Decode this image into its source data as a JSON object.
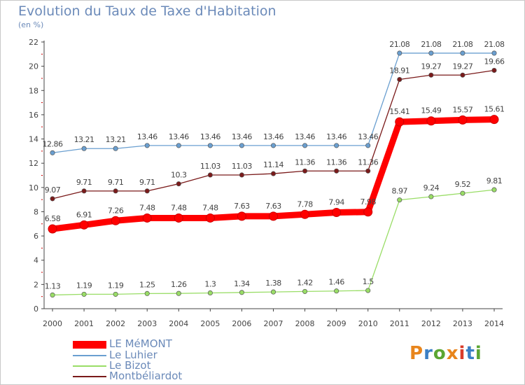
{
  "header": {
    "title": "Evolution du Taux de Taxe d'Habitation",
    "unit": "(en %)"
  },
  "brand": {
    "text": "Proxiti",
    "colors": [
      "#e8851c",
      "#3b7fc4",
      "#5ba632",
      "#e8851c",
      "#d93c2a",
      "#3b7fc4",
      "#5ba632"
    ]
  },
  "chart_data": {
    "type": "line",
    "title": "Evolution du Taux de Taxe d'Habitation",
    "ylabel": "(en %)",
    "xlabel": "",
    "x": [
      "2000",
      "2001",
      "2002",
      "2003",
      "2004",
      "2005",
      "2006",
      "2007",
      "2008",
      "2009",
      "2010",
      "2011",
      "2012",
      "2013",
      "2014"
    ],
    "ylim": [
      0,
      22
    ],
    "yticks": [
      0,
      2,
      4,
      6,
      8,
      10,
      12,
      14,
      16,
      18,
      20,
      22
    ],
    "grid": false,
    "legend": "bottom-left",
    "series": [
      {
        "name": "LE MéMONT",
        "color": "#ff0000",
        "width": "thick",
        "values": [
          6.58,
          6.91,
          7.26,
          7.48,
          7.48,
          7.48,
          7.63,
          7.63,
          7.78,
          7.94,
          7.98,
          15.41,
          15.49,
          15.57,
          15.61
        ],
        "labels": [
          "6.58",
          "6.91",
          "7.26",
          "7.48",
          "7.48",
          "7.48",
          "7.63",
          "7.63",
          "7.78",
          "7.94",
          "7.98",
          "15.41",
          "15.49",
          "15.57",
          "15.61"
        ]
      },
      {
        "name": "Le Luhier",
        "color": "#6a9fd0",
        "width": "thin",
        "values": [
          12.86,
          13.21,
          13.21,
          13.46,
          13.46,
          13.46,
          13.46,
          13.46,
          13.46,
          13.46,
          13.46,
          21.08,
          21.08,
          21.08,
          21.08
        ],
        "labels": [
          "12.86",
          "13.21",
          "13.21",
          "13.46",
          "13.46",
          "13.46",
          "13.46",
          "13.46",
          "13.46",
          "13.46",
          "13.46",
          "21.08",
          "21.08",
          "21.08",
          "21.08"
        ]
      },
      {
        "name": "Le Bizot",
        "color": "#99dd66",
        "width": "thin",
        "values": [
          1.13,
          1.19,
          1.19,
          1.25,
          1.26,
          1.3,
          1.34,
          1.38,
          1.42,
          1.46,
          1.5,
          8.97,
          9.24,
          9.52,
          9.81
        ],
        "labels": [
          "1.13",
          "1.19",
          "1.19",
          "1.25",
          "1.26",
          "1.3",
          "1.34",
          "1.38",
          "1.42",
          "1.46",
          "1.5",
          "8.97",
          "9.24",
          "9.52",
          "9.81"
        ]
      },
      {
        "name": "Montbéliardot",
        "color": "#7a1a1a",
        "width": "thin",
        "values": [
          9.07,
          9.71,
          9.71,
          9.71,
          10.3,
          11.03,
          11.03,
          11.14,
          11.36,
          11.36,
          11.36,
          18.91,
          19.27,
          19.27,
          19.66
        ],
        "labels": [
          "9.07",
          "9.71",
          "9.71",
          "9.71",
          "10.3",
          "11.03",
          "11.03",
          "11.14",
          "11.36",
          "11.36",
          "11.36",
          "18.91",
          "19.27",
          "19.27",
          "19.66"
        ]
      }
    ]
  }
}
